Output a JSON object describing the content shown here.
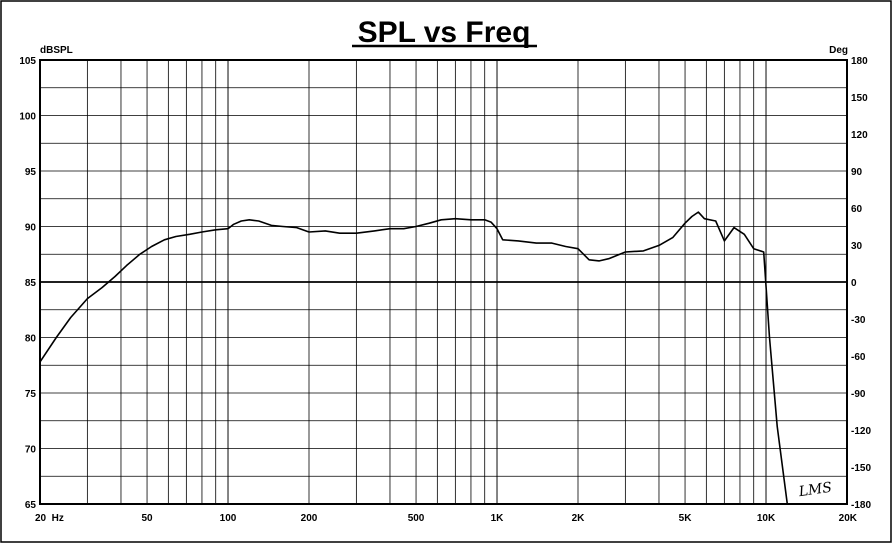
{
  "chart_data": {
    "type": "line",
    "title": "SPL vs Freq",
    "ylabel_left": "dBSPL",
    "ylabel_right": "Deg",
    "x_scale": "log",
    "xlim": [
      20,
      20000
    ],
    "ylim_left": [
      65,
      105
    ],
    "ylim_right": [
      -180,
      180
    ],
    "x_tick_labels": [
      {
        "value": 20,
        "label": "20  Hz"
      },
      {
        "value": 50,
        "label": "50"
      },
      {
        "value": 100,
        "label": "100"
      },
      {
        "value": 200,
        "label": "200"
      },
      {
        "value": 500,
        "label": "500"
      },
      {
        "value": 1000,
        "label": "1K"
      },
      {
        "value": 2000,
        "label": "2K"
      },
      {
        "value": 5000,
        "label": "5K"
      },
      {
        "value": 10000,
        "label": "10K"
      },
      {
        "value": 20000,
        "label": "20K"
      }
    ],
    "y_left_ticks": [
      105,
      100,
      95,
      90,
      85,
      80,
      75,
      70,
      65
    ],
    "y_right_ticks": [
      180,
      150,
      120,
      90,
      60,
      30,
      0,
      -30,
      -60,
      -90,
      -120,
      -150,
      -180
    ],
    "grid": true,
    "reference_line_db": 85,
    "logo_text": "LMS",
    "series": [
      {
        "points": [
          [
            20,
            77.8
          ],
          [
            23,
            80.0
          ],
          [
            26,
            81.8
          ],
          [
            30,
            83.5
          ],
          [
            34,
            84.5
          ],
          [
            38,
            85.5
          ],
          [
            42,
            86.5
          ],
          [
            47,
            87.5
          ],
          [
            52,
            88.2
          ],
          [
            58,
            88.8
          ],
          [
            64,
            89.1
          ],
          [
            72,
            89.3
          ],
          [
            80,
            89.5
          ],
          [
            90,
            89.7
          ],
          [
            100,
            89.8
          ],
          [
            105,
            90.2
          ],
          [
            112,
            90.5
          ],
          [
            120,
            90.6
          ],
          [
            130,
            90.5
          ],
          [
            145,
            90.1
          ],
          [
            160,
            90.0
          ],
          [
            180,
            89.9
          ],
          [
            200,
            89.5
          ],
          [
            230,
            89.6
          ],
          [
            260,
            89.4
          ],
          [
            300,
            89.4
          ],
          [
            350,
            89.6
          ],
          [
            400,
            89.8
          ],
          [
            450,
            89.8
          ],
          [
            500,
            90.0
          ],
          [
            560,
            90.3
          ],
          [
            620,
            90.6
          ],
          [
            700,
            90.7
          ],
          [
            800,
            90.6
          ],
          [
            900,
            90.6
          ],
          [
            950,
            90.4
          ],
          [
            1000,
            89.8
          ],
          [
            1050,
            88.8
          ],
          [
            1200,
            88.7
          ],
          [
            1400,
            88.5
          ],
          [
            1600,
            88.5
          ],
          [
            1800,
            88.2
          ],
          [
            2000,
            88.0
          ],
          [
            2200,
            87.0
          ],
          [
            2400,
            86.9
          ],
          [
            2600,
            87.1
          ],
          [
            3000,
            87.7
          ],
          [
            3500,
            87.8
          ],
          [
            4000,
            88.3
          ],
          [
            4500,
            89.0
          ],
          [
            5000,
            90.3
          ],
          [
            5300,
            90.9
          ],
          [
            5600,
            91.3
          ],
          [
            5900,
            90.7
          ],
          [
            6500,
            90.5
          ],
          [
            7000,
            88.7
          ],
          [
            7600,
            89.9
          ],
          [
            8300,
            89.3
          ],
          [
            9000,
            88.0
          ],
          [
            9800,
            87.7
          ],
          [
            10300,
            80.0
          ],
          [
            11000,
            72.0
          ],
          [
            12000,
            65.0
          ]
        ]
      }
    ]
  }
}
